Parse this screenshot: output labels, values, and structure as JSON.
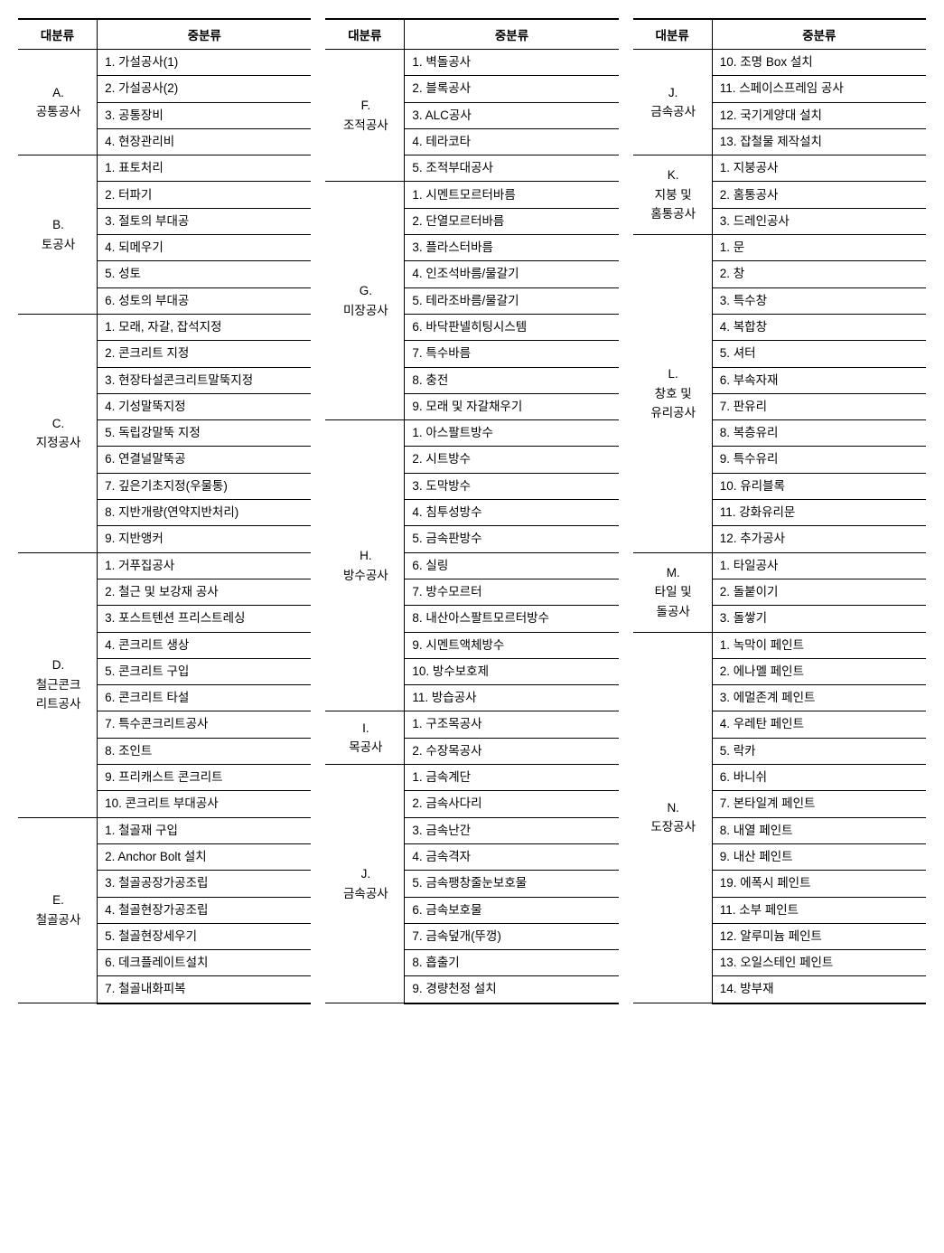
{
  "headers": {
    "col1": "대분류",
    "col2": "중분류"
  },
  "column1": [
    {
      "cat": "A.\n공통공사",
      "items": [
        "1. 가설공사(1)",
        "2. 가설공사(2)",
        "3. 공통장비",
        "4. 현장관리비"
      ]
    },
    {
      "cat": "B.\n토공사",
      "items": [
        "1. 표토처리",
        "2. 터파기",
        "3. 절토의 부대공",
        "4. 되메우기",
        "5. 성토",
        "6. 성토의 부대공"
      ]
    },
    {
      "cat": "C.\n지정공사",
      "items": [
        "1. 모래, 자갈, 잡석지정",
        "2. 콘크리트 지정",
        "3. 현장타설콘크리트말뚝지정",
        "4. 기성말뚝지정",
        "5. 독립강말뚝 지정",
        "6. 연결널말뚝공",
        "7. 깊은기초지정(우물통)",
        "8. 지반개량(연약지반처리)",
        "9. 지반앵커"
      ]
    },
    {
      "cat": "D.\n철근콘크\n리트공사",
      "items": [
        "1. 거푸집공사",
        "2. 철근 및 보강재 공사",
        "3. 포스트텐션 프리스트레싱",
        "4. 콘크리트 생상",
        "5. 콘크리트 구입",
        "6. 콘크리트 타설",
        "7. 특수콘크리트공사",
        "8. 조인트",
        "9. 프리캐스트 콘크리트",
        "10. 콘크리트 부대공사"
      ]
    },
    {
      "cat": "E.\n철골공사",
      "items": [
        "1. 철골재 구입",
        "2. Anchor Bolt 설치",
        "3. 철골공장가공조립",
        "4. 철골현장가공조립",
        "5. 철골현장세우기",
        "6. 데크플레이트설치",
        "7. 철골내화피복"
      ]
    }
  ],
  "column2": [
    {
      "cat": "F.\n조적공사",
      "items": [
        "1. 벽돌공사",
        "2. 블록공사",
        "3. ALC공사",
        "4. 테라코타",
        "5. 조적부대공사"
      ]
    },
    {
      "cat": "G.\n미장공사",
      "items": [
        "1. 시멘트모르터바름",
        "2. 단열모르터바름",
        "3. 플라스터바름",
        "4. 인조석바름/물갈기",
        "5. 테라조바름/물갈기",
        "6. 바닥판넬히팅시스템",
        "7. 특수바름",
        "8. 충전",
        "9. 모래 및 자갈채우기"
      ]
    },
    {
      "cat": "H.\n방수공사",
      "items": [
        "1. 아스팔트방수",
        "2. 시트방수",
        "3. 도막방수",
        "4. 침투성방수",
        "5. 금속판방수",
        "6. 실링",
        "7. 방수모르터",
        "8. 내산아스팔트모르터방수",
        "9. 시멘트액체방수",
        "10. 방수보호제",
        "11. 방습공사"
      ]
    },
    {
      "cat": "I.\n목공사",
      "items": [
        "1. 구조목공사",
        "2. 수장목공사"
      ]
    },
    {
      "cat": "J.\n금속공사",
      "items": [
        "1. 금속계단",
        "2. 금속사다리",
        "3. 금속난간",
        "4. 금속격자",
        "5. 금속팽창줄눈보호물",
        "6. 금속보호물",
        "7. 금속덮개(뚜껑)",
        "8. 흡출기",
        "9. 경량천정 설치"
      ]
    }
  ],
  "column3": [
    {
      "cat": "J.\n금속공사",
      "items": [
        "10. 조명 Box 설치",
        "11. 스페이스프레임 공사",
        "12. 국기게양대 설치",
        "13. 잡철물 제작설치"
      ]
    },
    {
      "cat": "K.\n지붕 및\n홈통공사",
      "items": [
        "1. 지붕공사",
        "2. 홈통공사",
        "3. 드레인공사"
      ]
    },
    {
      "cat": "L.\n창호 및\n유리공사",
      "items": [
        "1. 문",
        "2. 창",
        "3. 특수창",
        "4. 복합창",
        "5. 셔터",
        "6. 부속자재",
        "7. 판유리",
        "8. 복층유리",
        "9. 특수유리",
        "10. 유리블록",
        "11. 강화유리문",
        "12. 추가공사"
      ]
    },
    {
      "cat": "M.\n타일 및\n돌공사",
      "items": [
        "1. 타일공사",
        "2. 돌붙이기",
        "3. 돌쌓기"
      ]
    },
    {
      "cat": "N.\n도장공사",
      "items": [
        "1. 녹막이 페인트",
        "2. 에나멜 페인트",
        "3. 에멀존계 페인트",
        "4. 우레탄 페인트",
        "5. 락카",
        "6. 바니쉬",
        "7. 본타일계 페인트",
        "8. 내열 페인트",
        "9. 내산 페인트",
        "19. 에폭시 페인트",
        "11. 소부 페인트",
        "12. 알루미늄 페인트",
        "13. 오일스테인 페인트",
        "14. 방부재"
      ]
    }
  ]
}
